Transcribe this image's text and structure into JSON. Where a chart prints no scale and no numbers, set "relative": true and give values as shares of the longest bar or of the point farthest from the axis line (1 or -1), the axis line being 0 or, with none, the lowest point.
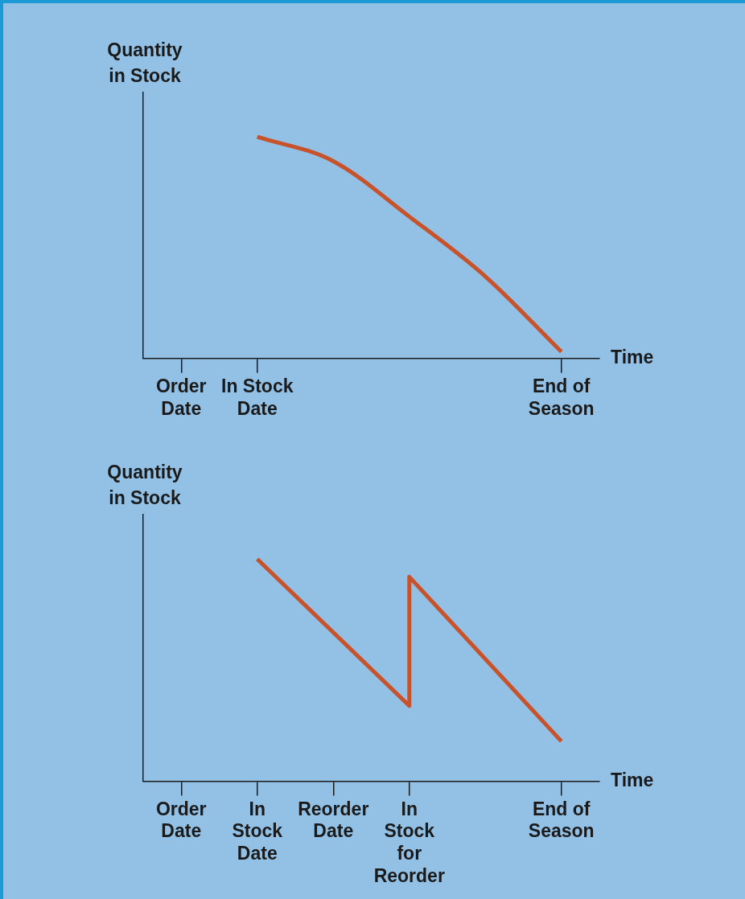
{
  "chart_data": [
    {
      "type": "line",
      "relative": true,
      "xlabel": "Time",
      "ylabel": "Quantity in Stock",
      "categories": [
        "Order Date",
        "In Stock Date",
        null,
        null,
        null,
        "End of Season"
      ],
      "series": [
        {
          "color": "#c8522a",
          "values": [
            null,
            1,
            0.89,
            0.64,
            0.37,
            0.03
          ]
        }
      ],
      "grid": false,
      "legend": false
    },
    {
      "type": "line",
      "relative": true,
      "xlabel": "Time",
      "ylabel": "Quantity in Stock",
      "categories": [
        "Order Date",
        "In Stock Date",
        "Reorder Date",
        "In Stock for Reorder",
        null,
        "End of Season"
      ],
      "series": [
        {
          "color": "#c8522a",
          "x": [
            "In Stock Date",
            "In Stock for Reorder",
            "In Stock for Reorder",
            "End of Season"
          ],
          "values": [
            1,
            0.34,
            0.92,
            0.18
          ]
        }
      ],
      "grid": false,
      "legend": false
    }
  ]
}
